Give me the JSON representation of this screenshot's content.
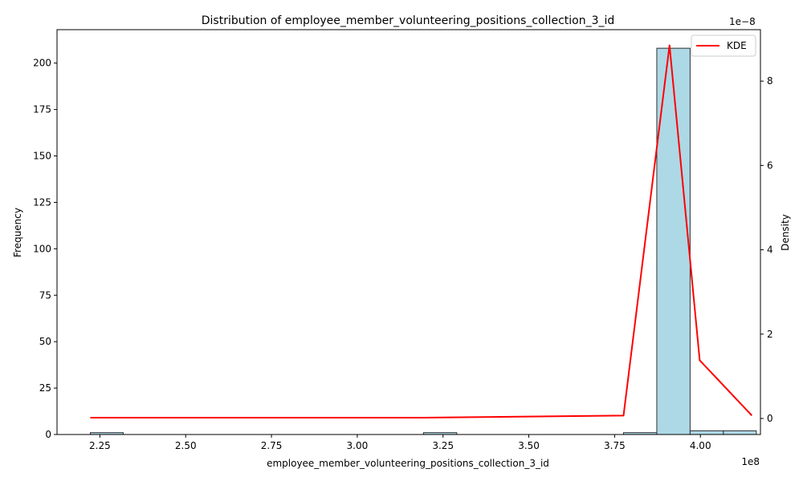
{
  "chart_data": {
    "type": "bar",
    "title": "Distribution of employee_member_volunteering_positions_collection_3_id",
    "xlabel": "employee_member_volunteering_positions_collection_3_id",
    "ylabel": "Frequency",
    "y2label": "Density",
    "x_offset_label": "1e8",
    "y2_offset_label": "1e−8",
    "xlim": [
      2.125,
      4.175
    ],
    "ylim": [
      0,
      218
    ],
    "y2lim": [
      -0.38,
      9.22
    ],
    "x_ticks": [
      {
        "value": 2.25,
        "label": "2.25"
      },
      {
        "value": 2.5,
        "label": "2.50"
      },
      {
        "value": 2.75,
        "label": "2.75"
      },
      {
        "value": 3.0,
        "label": "3.00"
      },
      {
        "value": 3.25,
        "label": "3.25"
      },
      {
        "value": 3.5,
        "label": "3.50"
      },
      {
        "value": 3.75,
        "label": "3.75"
      },
      {
        "value": 4.0,
        "label": "4.00"
      }
    ],
    "y_ticks": [
      {
        "value": 0,
        "label": "0"
      },
      {
        "value": 25,
        "label": "25"
      },
      {
        "value": 50,
        "label": "50"
      },
      {
        "value": 75,
        "label": "75"
      },
      {
        "value": 100,
        "label": "100"
      },
      {
        "value": 125,
        "label": "125"
      },
      {
        "value": 150,
        "label": "150"
      },
      {
        "value": 175,
        "label": "175"
      },
      {
        "value": 200,
        "label": "200"
      }
    ],
    "y2_ticks": [
      {
        "value": 0,
        "label": "0"
      },
      {
        "value": 2,
        "label": "2"
      },
      {
        "value": 4,
        "label": "4"
      },
      {
        "value": 6,
        "label": "6"
      },
      {
        "value": 8,
        "label": "8"
      }
    ],
    "bins": [
      {
        "x0": 2.222,
        "x1": 2.318,
        "count": 1
      },
      {
        "x0": 3.193,
        "x1": 3.29,
        "count": 1
      },
      {
        "x0": 3.776,
        "x1": 3.873,
        "count": 1
      },
      {
        "x0": 3.873,
        "x1": 3.97,
        "count": 208
      },
      {
        "x0": 3.97,
        "x1": 4.067,
        "count": 2
      },
      {
        "x0": 4.067,
        "x1": 4.163,
        "count": 2
      }
    ],
    "series": [
      {
        "name": "KDE",
        "type": "line",
        "axis": "right",
        "x": [
          2.222,
          3.193,
          3.776,
          3.91,
          3.998,
          4.15
        ],
        "y": [
          0.02,
          0.02,
          0.07,
          8.85,
          1.38,
          0.07
        ]
      }
    ],
    "legend_position": "top-right",
    "grid": false,
    "colors": {
      "bar_fill": "#add8e6",
      "bar_edge": "#2f2f2f",
      "kde_line": "#ff0000"
    }
  }
}
